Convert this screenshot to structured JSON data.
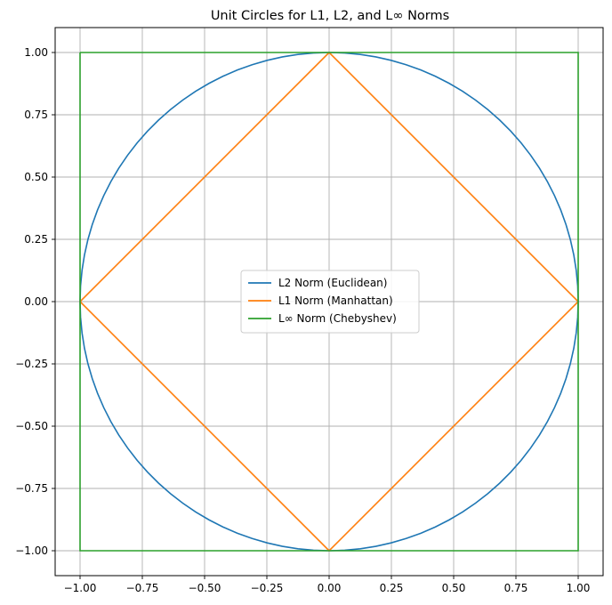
{
  "chart_data": {
    "type": "line",
    "title": "Unit Circles for L1, L2, and L∞ Norms",
    "xlabel": "",
    "ylabel": "",
    "xlim": [
      -1.1,
      1.1
    ],
    "ylim": [
      -1.1,
      1.1
    ],
    "grid": true,
    "legend_position": "center",
    "xticks": [
      -1.0,
      -0.75,
      -0.5,
      -0.25,
      0.0,
      0.25,
      0.5,
      0.75,
      1.0
    ],
    "xtick_labels": [
      "−1.00",
      "−0.75",
      "−0.50",
      "−0.25",
      "0.00",
      "0.25",
      "0.50",
      "0.75",
      "1.00"
    ],
    "yticks": [
      -1.0,
      -0.75,
      -0.5,
      -0.25,
      0.0,
      0.25,
      0.5,
      0.75,
      1.0
    ],
    "ytick_labels": [
      "−1.00",
      "−0.75",
      "−0.50",
      "−0.25",
      "0.00",
      "0.25",
      "0.50",
      "0.75",
      "1.00"
    ],
    "series": [
      {
        "name": "L2 Norm (Euclidean)",
        "color": "#1f77b4",
        "shape": "circle",
        "x": [
          1,
          0.707,
          0,
          -0.707,
          -1,
          -0.707,
          0,
          0.707,
          1
        ],
        "y": [
          0,
          0.707,
          1,
          0.707,
          0,
          -0.707,
          -1,
          -0.707,
          0
        ]
      },
      {
        "name": "L1 Norm (Manhattan)",
        "color": "#ff7f0e",
        "shape": "polyline",
        "x": [
          1,
          0,
          -1,
          0,
          1
        ],
        "y": [
          0,
          1,
          0,
          -1,
          0
        ]
      },
      {
        "name": "L∞ Norm (Chebyshev)",
        "color": "#2ca02c",
        "shape": "polyline",
        "x": [
          -1,
          1,
          1,
          -1,
          -1
        ],
        "y": [
          1,
          1,
          -1,
          -1,
          1
        ]
      }
    ]
  }
}
